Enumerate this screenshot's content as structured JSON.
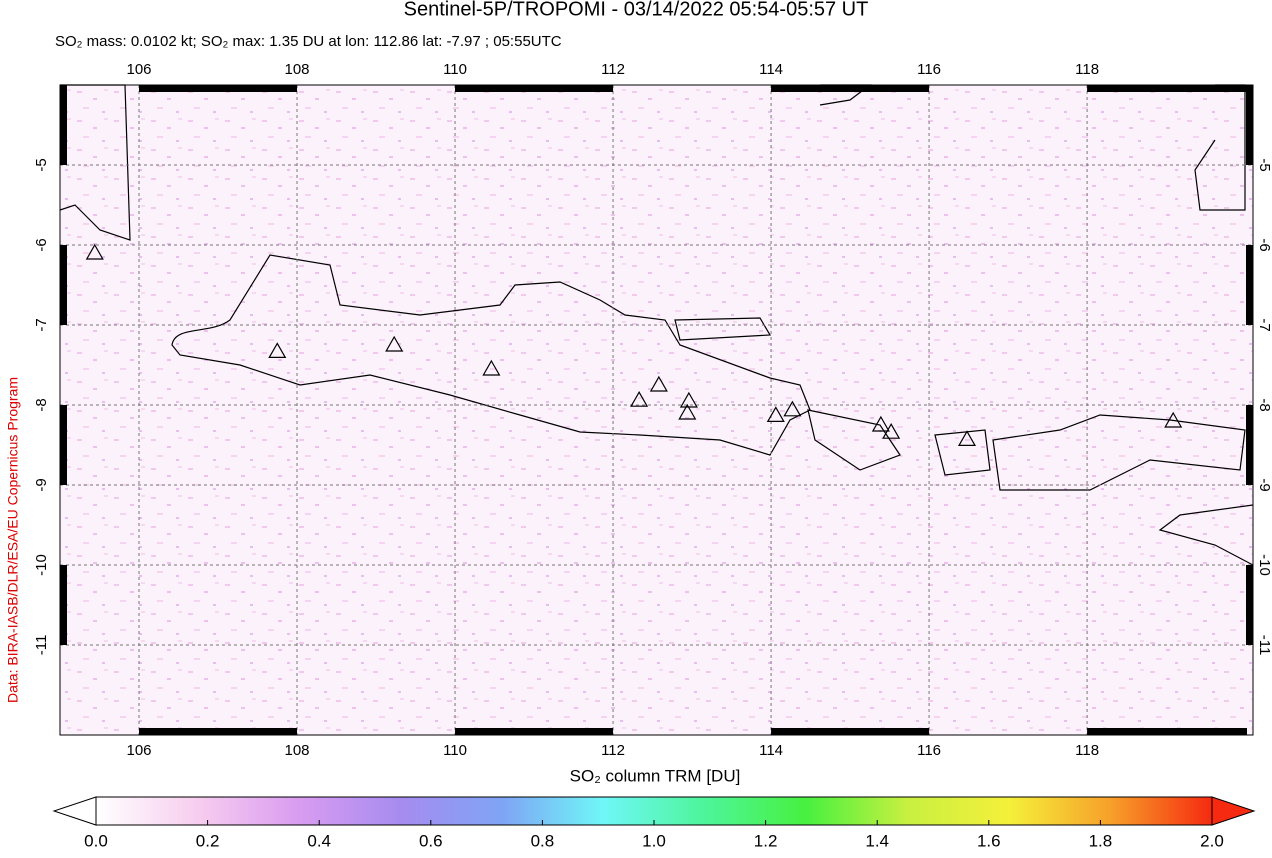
{
  "chart_data": {
    "type": "map",
    "title": "Sentinel-5P/TROPOMI - 03/14/2022 05:54-05:57 UT",
    "subtitle": "SO₂ mass: 0.0102 kt; SO₂ max: 1.35 DU at lon: 112.86 lat: -7.97 ; 05:55UTC",
    "credit": "Data: BIRA-IASB/DLR/ESA/EU Copernicus Program",
    "colorbar_label": "SO₂ column TRM [DU]",
    "xlim": [
      105,
      120.1
    ],
    "ylim": [
      -12.125,
      -4
    ],
    "xticks": [
      106,
      108,
      110,
      112,
      114,
      116,
      118
    ],
    "yticks": [
      -11,
      -10,
      -9,
      -8,
      -7,
      -6,
      -5
    ],
    "grid": true,
    "volcanoes": {
      "lon": [
        105.44,
        107.75,
        109.23,
        110.46,
        112.33,
        112.58,
        112.94,
        112.96,
        114.06,
        114.27,
        115.39,
        115.52,
        116.48,
        119.09
      ],
      "lat": [
        -6.1,
        -7.33,
        -7.25,
        -7.55,
        -7.94,
        -7.75,
        -8.1,
        -7.95,
        -8.13,
        -8.06,
        -8.25,
        -8.34,
        -8.43,
        -8.2
      ]
    },
    "colorbar_lim": [
      0,
      2
    ],
    "colorbar_ticks": [
      {
        "value": 0,
        "label": "0.0"
      },
      0.2,
      0.4,
      0.6,
      0.8,
      {
        "value": 1,
        "label": "1.0"
      },
      1.2,
      1.4,
      1.6,
      1.8,
      {
        "value": 2,
        "label": "2.0"
      }
    ],
    "colormap": [
      "#ffffff",
      "#f7cdef",
      "#d99cf0",
      "#a68cef",
      "#7fa4f5",
      "#6ff7f7",
      "#4df59a",
      "#48f040",
      "#c8f040",
      "#f5f03a",
      "#f7a02a",
      "#f52a10"
    ]
  }
}
